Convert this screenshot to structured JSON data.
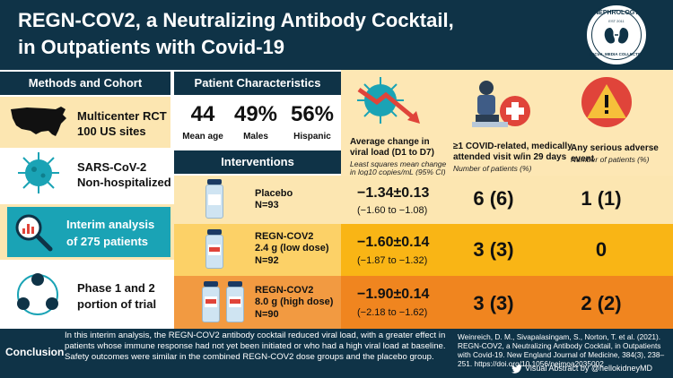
{
  "header": {
    "title_line1": "REGN-COV2, a Neutralizing Antibody Cocktail,",
    "title_line2": "in Outpatients with Covid-19",
    "logo_top": "NEPHROLOGY",
    "logo_est": "EST 2011",
    "logo_bottom": "SOCIAL MEDIA COLLECTIVE"
  },
  "methods": {
    "heading": "Methods and Cohort",
    "items": [
      {
        "icon": "us-map-icon",
        "text_line1": "Multicenter RCT",
        "text_line2": "100 US sites"
      },
      {
        "icon": "virus-icon",
        "text_line1": "SARS-CoV-2",
        "text_line2": "Non-hospitalized"
      },
      {
        "icon": "magnifier-chart-icon",
        "text_line1": "Interim analysis",
        "text_line2": "of 275 patients"
      },
      {
        "icon": "cycle-people-icon",
        "text_line1": "Phase 1 and 2",
        "text_line2": "portion of trial"
      }
    ]
  },
  "characteristics": {
    "heading": "Patient Characteristics",
    "stats": [
      {
        "value": "44",
        "label": "Mean age"
      },
      {
        "value": "49%",
        "label": "Males"
      },
      {
        "value": "56%",
        "label": "Hispanic"
      }
    ]
  },
  "interventions": {
    "heading": "Interventions"
  },
  "columns": {
    "viral": {
      "title_line1": "Average change in",
      "title_line2": "viral load (D1 to D7)",
      "sub_line1": "Least squares mean change",
      "sub_line2": "in log10 copies/mL (95% CI)"
    },
    "visits": {
      "title_line1": "≥1 COVID-related, medically",
      "title_line2": "attended visit w/in 29 days",
      "sub": "Number of patients (%)"
    },
    "adverse": {
      "title": "Any serious adverse event",
      "sub": "Number of patients (%)"
    }
  },
  "arms": [
    {
      "name_line1": "Placebo",
      "name_line2": "",
      "n": "N=93",
      "viral": "−1.34±0.13",
      "ci": "(−1.60 to −1.08)",
      "visits": "6 (6)",
      "adverse": "1 (1)",
      "color": "#fce6b1"
    },
    {
      "name_line1": "REGN-COV2",
      "name_line2": "2.4 g (low dose)",
      "n": "N=92",
      "viral": "−1.60±0.14",
      "ci": "(−1.87 to −1.32)",
      "visits": "3 (3)",
      "adverse": "0",
      "color": "#f9b515"
    },
    {
      "name_line1": "REGN-COV2",
      "name_line2": "8.0 g (high dose)",
      "n": "N=90",
      "viral": "−1.90±0.14",
      "ci": "(−2.18 to −1.62)",
      "visits": "3 (3)",
      "adverse": "2 (2)",
      "color": "#f0851f"
    }
  ],
  "footer": {
    "label": "Conclusion",
    "body": "In this interim analysis, the REGN-COV2 antibody cocktail reduced viral load, with a greater effect in patients whose immune response had not yet been initiated or who had a high viral load at baseline. Safety outcomes were similar in the combined REGN-COV2 dose groups and the placebo group.",
    "reference": "Weinreich, D. M., Sivapalasingam, S., Norton, T. et al. (2021). REGN-COV2, a Neutralizing Antibody Cocktail, in Outpatients with Covid-19. New England Journal of Medicine, 384(3), 238–251. https://doi.org/10.1056/nejmoa2035002",
    "credit": "Visual Abstract by @hellokidneyMD"
  },
  "colors": {
    "navy": "#0f3347",
    "left_highlight": "#fce6b1",
    "teal": "#1aa3b5",
    "placebo": "#fce6b1",
    "low": "#f9b515",
    "high": "#f0851f",
    "right_bg": "#fde7b4"
  }
}
